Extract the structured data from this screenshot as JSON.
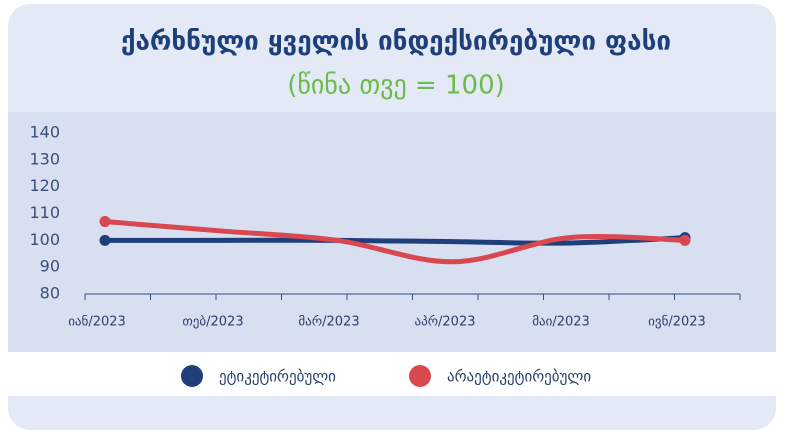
{
  "chart_data": {
    "type": "line",
    "title": "ქარხნული ყველის ინდექსირებული ფასი",
    "subtitle": "(წინა თვე = 100)",
    "categories": [
      "იან/2023",
      "თებ/2023",
      "მარ/2023",
      "აპრ/2023",
      "მაი/2023",
      "ივნ/2023"
    ],
    "series": [
      {
        "name": "ეტიკეტირებული",
        "color": "#1f3f7a",
        "values": [
          100,
          100,
          100,
          99.5,
          99,
          101
        ]
      },
      {
        "name": "არაეტიკეტირებული",
        "color": "#d9474f",
        "values": [
          107,
          103.5,
          100,
          92,
          101,
          100
        ]
      }
    ],
    "ylim": [
      80,
      140
    ],
    "yticks": [
      80,
      90,
      100,
      110,
      120,
      130,
      140
    ]
  }
}
